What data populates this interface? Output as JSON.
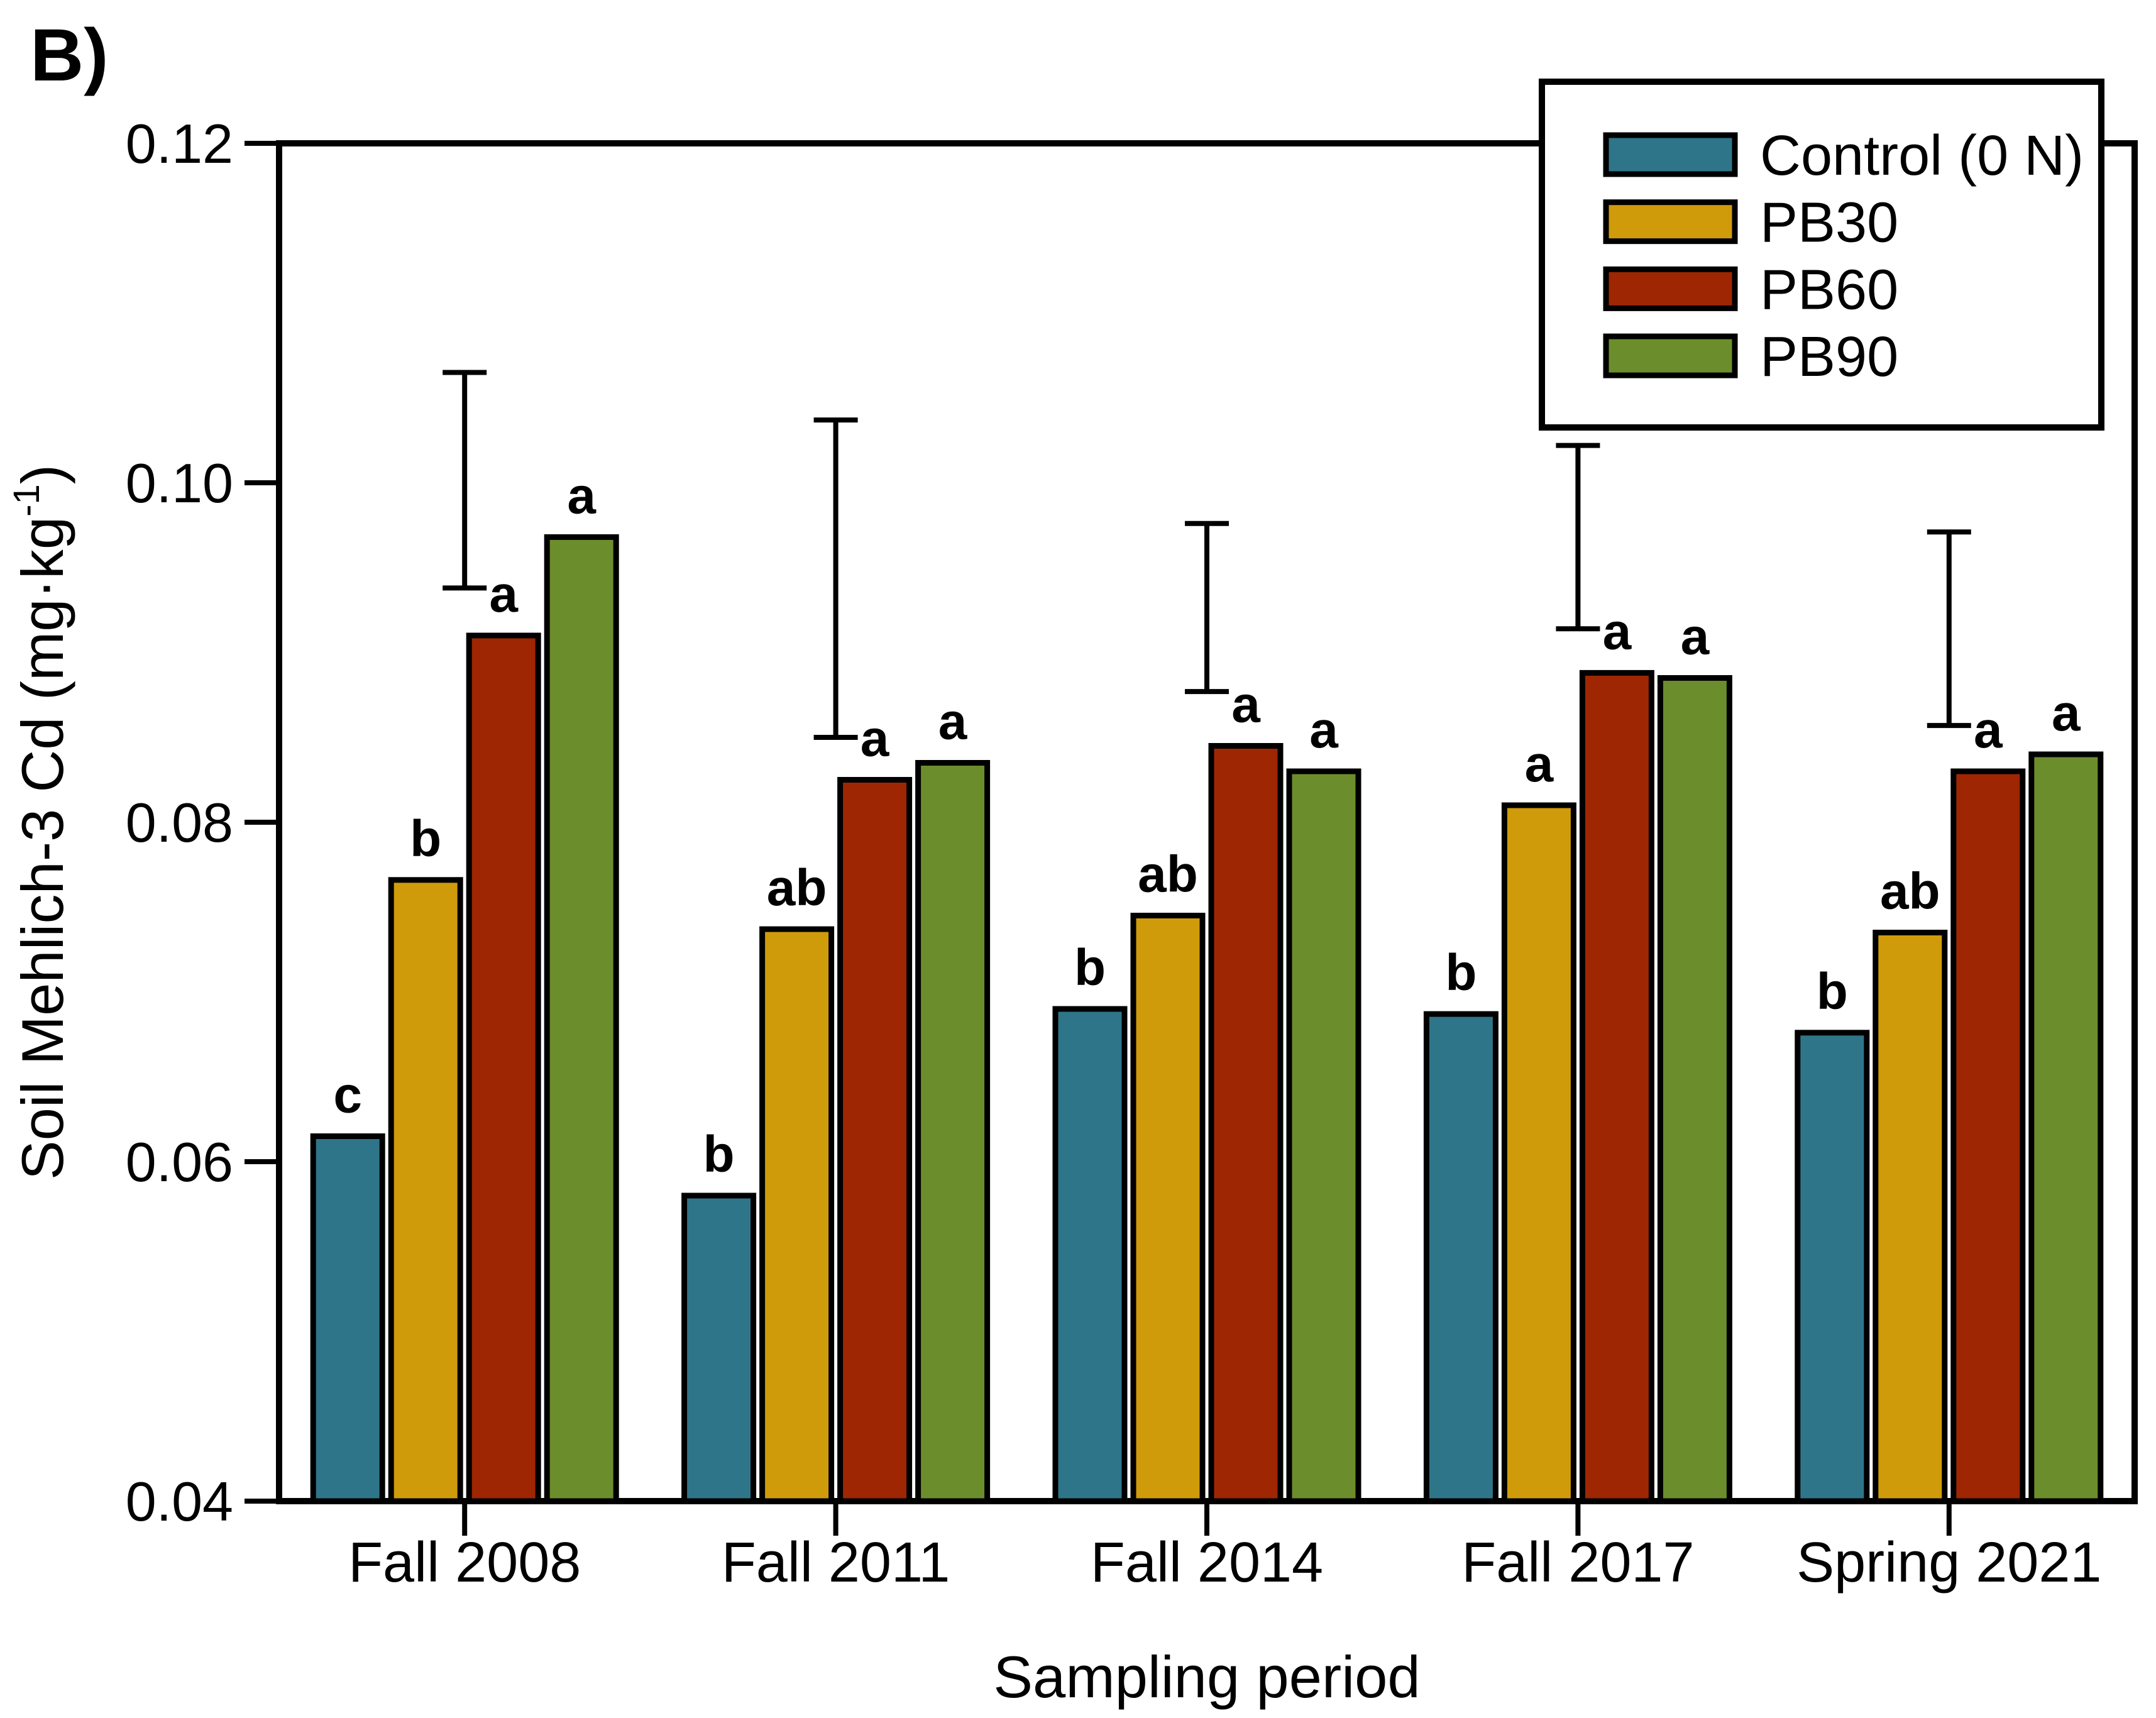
{
  "chart_data": {
    "type": "bar",
    "panel_label": "B)",
    "title": "",
    "xlabel": "Sampling period",
    "ylabel": "Soil Mehlich-3 Cd (mg·kg⁻¹)",
    "ylabel_parts": {
      "main": "Soil Mehlich-3 Cd (mg·kg",
      "sup": "-1",
      "close": ")"
    },
    "ylim": [
      0.04,
      0.12
    ],
    "yticks": [
      0.04,
      0.06,
      0.08,
      0.1,
      0.12
    ],
    "grid": "off",
    "legend_position": "top-right",
    "categories": [
      "Fall 2008",
      "Fall 2011",
      "Fall 2014",
      "Fall 2017",
      "Spring 2021"
    ],
    "series": [
      {
        "name": "Control (0 N)",
        "color": "#2F7589",
        "values": [
          0.0615,
          0.058,
          0.069,
          0.0687,
          0.0676
        ],
        "letters": [
          "c",
          "b",
          "b",
          "b",
          "b"
        ]
      },
      {
        "name": "PB30",
        "color": "#D09B0A",
        "values": [
          0.0766,
          0.0737,
          0.0745,
          0.081,
          0.0735
        ],
        "letters": [
          "b",
          "ab",
          "ab",
          "a",
          "ab"
        ]
      },
      {
        "name": "PB60",
        "color": "#9E2603",
        "values": [
          0.091,
          0.0825,
          0.0845,
          0.0888,
          0.083
        ],
        "letters": [
          "a",
          "a",
          "a",
          "a",
          "a"
        ]
      },
      {
        "name": "PB90",
        "color": "#6C8D2C",
        "values": [
          0.0968,
          0.0835,
          0.083,
          0.0885,
          0.084
        ],
        "letters": [
          "a",
          "a",
          "a",
          "a",
          "a"
        ]
      }
    ],
    "error_bars": [
      {
        "category": "Fall 2008",
        "low": 0.0938,
        "high": 0.1065
      },
      {
        "category": "Fall 2011",
        "low": 0.085,
        "high": 0.1037
      },
      {
        "category": "Fall 2014",
        "low": 0.0877,
        "high": 0.0976
      },
      {
        "category": "Fall 2017",
        "low": 0.0914,
        "high": 0.1022
      },
      {
        "category": "Spring 2021",
        "low": 0.0857,
        "high": 0.0971
      }
    ]
  }
}
